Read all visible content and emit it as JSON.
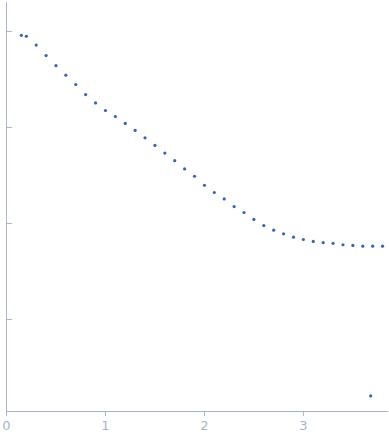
{
  "chart_data": {
    "type": "scatter",
    "color": "#3b63b5",
    "marker": "circle",
    "x": [
      0.15,
      0.2,
      0.3,
      0.4,
      0.5,
      0.6,
      0.7,
      0.8,
      0.9,
      1.0,
      1.1,
      1.2,
      1.3,
      1.4,
      1.5,
      1.6,
      1.7,
      1.8,
      1.9,
      2.0,
      2.1,
      2.2,
      2.3,
      2.4,
      2.5,
      2.6,
      2.7,
      2.8,
      2.9,
      3.0,
      3.1,
      3.2,
      3.3,
      3.4,
      3.5,
      3.6,
      3.68,
      3.7,
      3.8
    ],
    "values": [
      9.1,
      8.9,
      7.2,
      5.6,
      4.4,
      3.5,
      2.8,
      2.2,
      1.8,
      1.5,
      1.3,
      1.1,
      0.93,
      0.78,
      0.65,
      0.54,
      0.45,
      0.37,
      0.31,
      0.25,
      0.21,
      0.18,
      0.15,
      0.13,
      0.11,
      0.095,
      0.085,
      0.078,
      0.072,
      0.068,
      0.065,
      0.063,
      0.062,
      0.06,
      0.059,
      0.058,
      0.0016,
      0.058,
      0.058
    ],
    "xlim": [
      0,
      3.85
    ],
    "xticks": [
      0,
      1,
      2,
      3
    ],
    "ylim": [
      0.0011,
      20
    ],
    "yticks": [
      0.01,
      0.1,
      1,
      10
    ],
    "log": "y",
    "tick_labels": "x"
  }
}
